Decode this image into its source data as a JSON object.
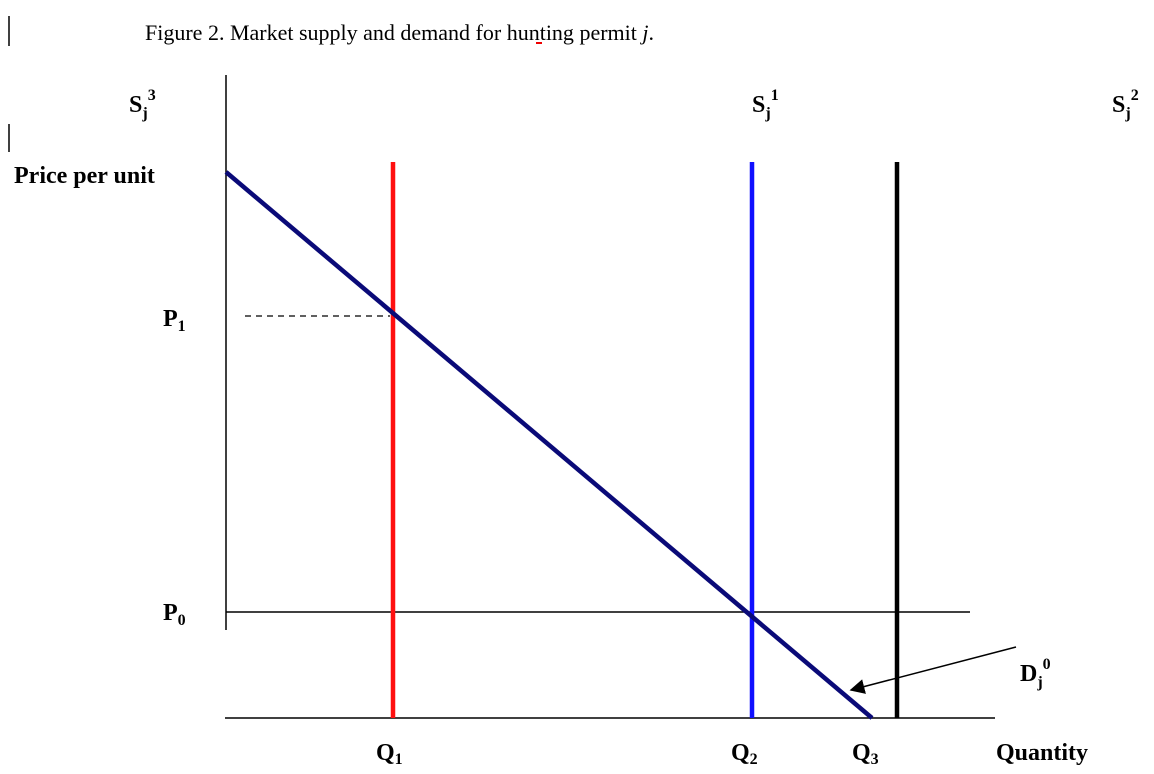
{
  "caption": {
    "text": "Figure 2. Market supply and demand for hunting",
    "word": "permit",
    "variable": "j",
    "end": "."
  },
  "axis_labels": {
    "y": "Price per unit",
    "x": "Quantity"
  },
  "supply_curves": [
    {
      "base": "S",
      "sub": "j",
      "sup": "1"
    },
    {
      "base": "S",
      "sub": "j",
      "sup": "2"
    },
    {
      "base": "S",
      "sub": "j",
      "sup": "3"
    }
  ],
  "demand_curve": {
    "base": "D",
    "sub": "j",
    "sup": "0"
  },
  "prices": [
    {
      "base": "P",
      "sub": "1"
    },
    {
      "base": "P",
      "sub": "0"
    }
  ],
  "quantities": [
    {
      "base": "Q",
      "sub": "1"
    },
    {
      "base": "Q",
      "sub": "2"
    },
    {
      "base": "Q",
      "sub": "3"
    }
  ]
}
